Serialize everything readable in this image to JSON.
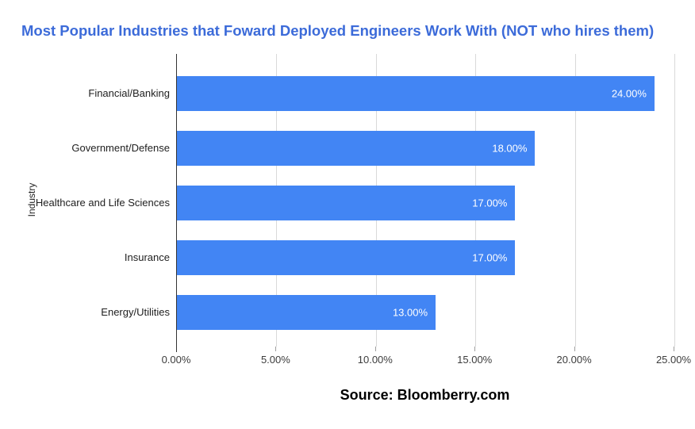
{
  "source": {
    "text": "Source: Bloomberry.com"
  },
  "colors": {
    "title": "#3C6BD9",
    "bar": "#4285F4",
    "data_label": "#FFFFFF",
    "gridline": "#D9D9D9",
    "axis_line": "#333333"
  },
  "chart_data": {
    "type": "bar",
    "orientation": "horizontal",
    "title": "Most Popular Industries that Foward Deployed Engineers Work With (NOT who hires them)",
    "categories": [
      "Financial/Banking",
      "Government/Defense",
      "Healthcare and Life Sciences",
      "Insurance",
      "Energy/Utilities"
    ],
    "values": [
      24,
      18,
      17,
      17,
      13
    ],
    "data_labels": [
      "24.00%",
      "18.00%",
      "17.00%",
      "17.00%",
      "13.00%"
    ],
    "xlabel": "",
    "ylabel": "Industry",
    "xlim": [
      0,
      25
    ],
    "x_ticks": [
      "0.00%",
      "5.00%",
      "10.00%",
      "15.00%",
      "20.00%",
      "25.00%"
    ],
    "x_tick_values": [
      0,
      5,
      10,
      15,
      20,
      25
    ],
    "grid": true,
    "legend": false
  }
}
